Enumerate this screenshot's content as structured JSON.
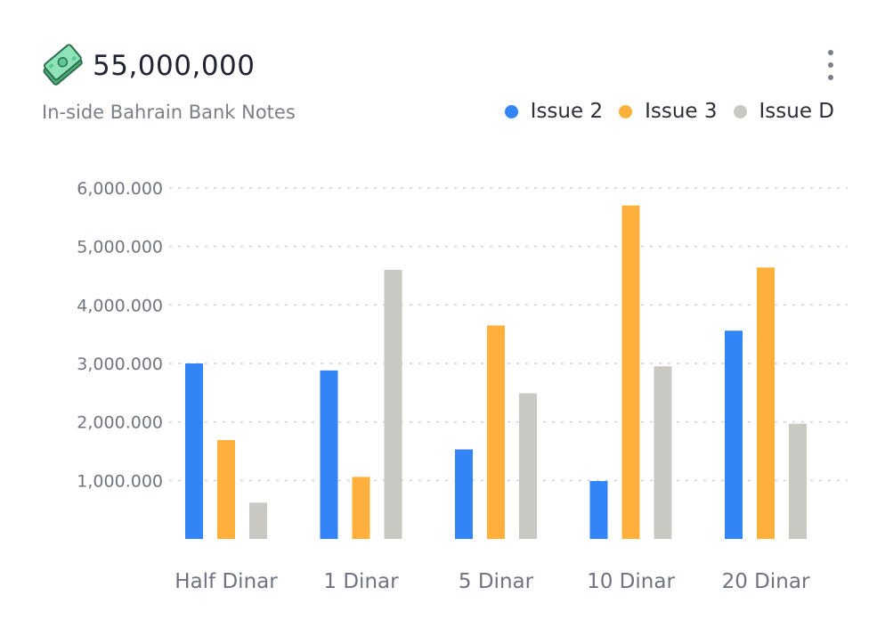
{
  "header": {
    "total": "55,000,000",
    "icon": "banknote-icon",
    "subtitle": "In-side Bahrain Bank Notes",
    "menu_icon": "kebab-menu-icon"
  },
  "legend": [
    {
      "label": "Issue 2",
      "color": "#3385f7"
    },
    {
      "label": "Issue 3",
      "color": "#ffb03c"
    },
    {
      "label": "Issue D",
      "color": "#c9c8c2"
    }
  ],
  "chart_data": {
    "type": "bar",
    "categories": [
      "Half Dinar",
      "1 Dinar",
      "5 Dinar",
      "10 Dinar",
      "20 Dinar"
    ],
    "series": [
      {
        "name": "Issue 2",
        "color": "#3385f7",
        "values": [
          3000000,
          2880000,
          1530000,
          990000,
          3560000
        ]
      },
      {
        "name": "Issue 3",
        "color": "#ffb03c",
        "values": [
          1690000,
          1060000,
          3650000,
          5700000,
          4640000
        ]
      },
      {
        "name": "Issue D",
        "color": "#c9c8c2",
        "values": [
          620000,
          4600000,
          2490000,
          2950000,
          1970000
        ]
      }
    ],
    "ylim": [
      0,
      6000000
    ],
    "yticks": [
      {
        "value": 1000000,
        "label": "1,000.000"
      },
      {
        "value": 2000000,
        "label": "2,000.000"
      },
      {
        "value": 3000000,
        "label": "3,000.000"
      },
      {
        "value": 4000000,
        "label": "4,000.000"
      },
      {
        "value": 5000000,
        "label": "5,000.000"
      },
      {
        "value": 6000000,
        "label": "6,000.000"
      }
    ],
    "grid": true,
    "legend_position": "top-right"
  }
}
